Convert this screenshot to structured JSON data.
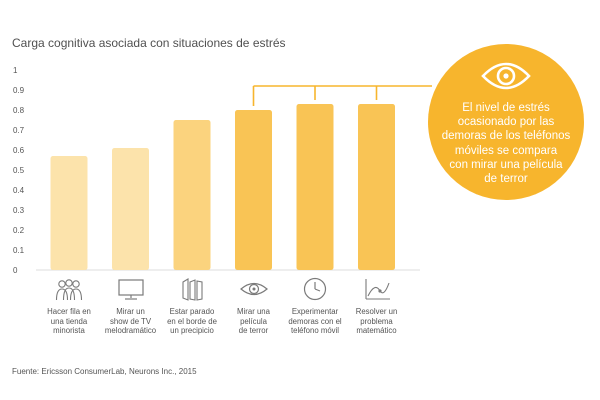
{
  "chart_data": {
    "type": "bar",
    "title": "Carga cognitiva asociada con situaciones de estrés",
    "categories": [
      "Hacer fila en\nuna tienda\nminorista",
      "Mirar un\nshow de TV\nmelodramático",
      "Estar parado\nen el borde de\nun precipicio",
      "Mirar una\npelícula\nde terror",
      "Experimentar\ndemoras con el\nteléfono móvil",
      "Resolver un\nproblema\nmatemático"
    ],
    "values": [
      0.57,
      0.61,
      0.75,
      0.8,
      0.83,
      0.83
    ],
    "ylim": [
      0,
      1
    ],
    "yticks": [
      "0",
      "0.1",
      "0.2",
      "0.3",
      "0.4",
      "0.5",
      "0.6",
      "0.7",
      "0.8",
      "0.9",
      "1"
    ],
    "grid": false,
    "bar_colors": [
      "#fce3ab",
      "#fce3ab",
      "#fbd37e",
      "#f9c455",
      "#f9c455",
      "#f9c455"
    ],
    "category_icons": [
      "people-queue-icon",
      "tv-icon",
      "precipice-icon",
      "eye-icon",
      "clock-icon",
      "math-graph-icon"
    ],
    "annotation": {
      "text": "El nivel de estrés\nocasionado por las\ndemoras de los teléfonos\nmóviles se compara\ncon mirar una película\nde terror",
      "icon": "eye-icon",
      "color": "#f7b52d",
      "links_categories": [
        3,
        4,
        5
      ]
    },
    "source": "Fuente: Ericsson ConsumerLab, Neurons Inc., 2015"
  }
}
